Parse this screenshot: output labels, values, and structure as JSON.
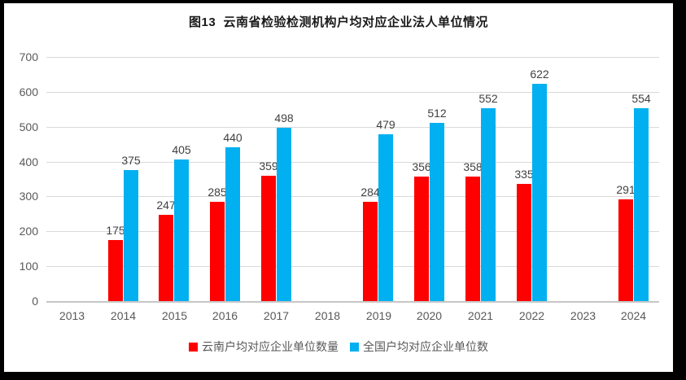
{
  "chart_data": {
    "type": "bar",
    "title": "图13  云南省检验检测机构户均对应企业法人单位情况",
    "categories": [
      "2013",
      "2014",
      "2015",
      "2016",
      "2017",
      "2018",
      "2019",
      "2020",
      "2021",
      "2022",
      "2023",
      "2024"
    ],
    "series": [
      {
        "name": "云南户均对应企业单位数量",
        "color": "#FF0000",
        "values": [
          null,
          175,
          247,
          285,
          359,
          null,
          284,
          356,
          358,
          335,
          null,
          291
        ]
      },
      {
        "name": "全国户均对应企业单位数",
        "color": "#00B0F0",
        "values": [
          null,
          375,
          405,
          440,
          498,
          null,
          479,
          512,
          552,
          622,
          null,
          554
        ]
      }
    ],
    "ylim": [
      0,
      700
    ],
    "yticks": [
      0,
      100,
      200,
      300,
      400,
      500,
      600,
      700
    ],
    "grid": true,
    "value_labels": true,
    "legend_position": "bottom"
  },
  "styles": {
    "gridline_color": "#D9D9D9",
    "axis_line_color": "#C6C6C6",
    "tick_label_color": "#595959",
    "value_label_color": "#404040",
    "title_color": "#1a1a1a",
    "frame_border_color": "#000000",
    "background": "#FFFFFF"
  }
}
